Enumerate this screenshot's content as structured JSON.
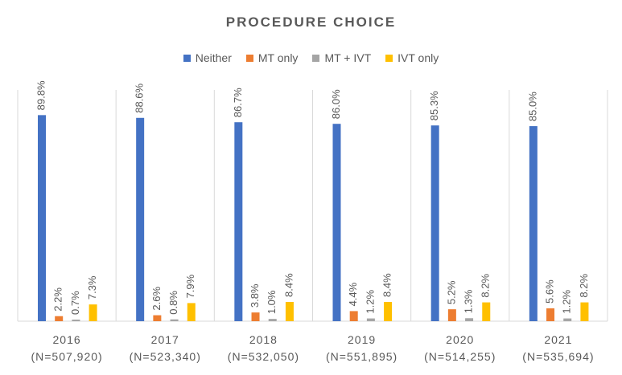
{
  "chart_data": {
    "type": "bar",
    "title": "PROCEDURE CHOICE",
    "categories": [
      {
        "year": "2016",
        "n": "(N=507,920)"
      },
      {
        "year": "2017",
        "n": "(N=523,340)"
      },
      {
        "year": "2018",
        "n": "(N=532,050)"
      },
      {
        "year": "2019",
        "n": "(N=551,895)"
      },
      {
        "year": "2020",
        "n": "(N=514,255)"
      },
      {
        "year": "2021",
        "n": "(N=535,694)"
      }
    ],
    "series": [
      {
        "name": "Neither",
        "color": "#4472C4",
        "values": [
          89.8,
          88.6,
          86.7,
          86.0,
          85.3,
          85.0
        ],
        "labels": [
          "89.8%",
          "88.6%",
          "86.7%",
          "86.0%",
          "85.3%",
          "85.0%"
        ]
      },
      {
        "name": "MT only",
        "color": "#ED7D31",
        "values": [
          2.2,
          2.6,
          3.8,
          4.4,
          5.2,
          5.6
        ],
        "labels": [
          "2.2%",
          "2.6%",
          "3.8%",
          "4.4%",
          "5.2%",
          "5.6%"
        ]
      },
      {
        "name": "MT + IVT",
        "color": "#A5A5A5",
        "values": [
          0.7,
          0.8,
          1.0,
          1.2,
          1.3,
          1.2
        ],
        "labels": [
          "0.7%",
          "0.8%",
          "1.0%",
          "1.2%",
          "1.3%",
          "1.2%"
        ]
      },
      {
        "name": "IVT only",
        "color": "#FFC000",
        "values": [
          7.3,
          7.9,
          8.4,
          8.4,
          8.2,
          8.2
        ],
        "labels": [
          "7.3%",
          "7.9%",
          "8.4%",
          "8.4%",
          "8.2%",
          "8.2%"
        ]
      }
    ],
    "ylim": [
      0,
      100
    ],
    "grid": false,
    "legend_position": "top"
  }
}
